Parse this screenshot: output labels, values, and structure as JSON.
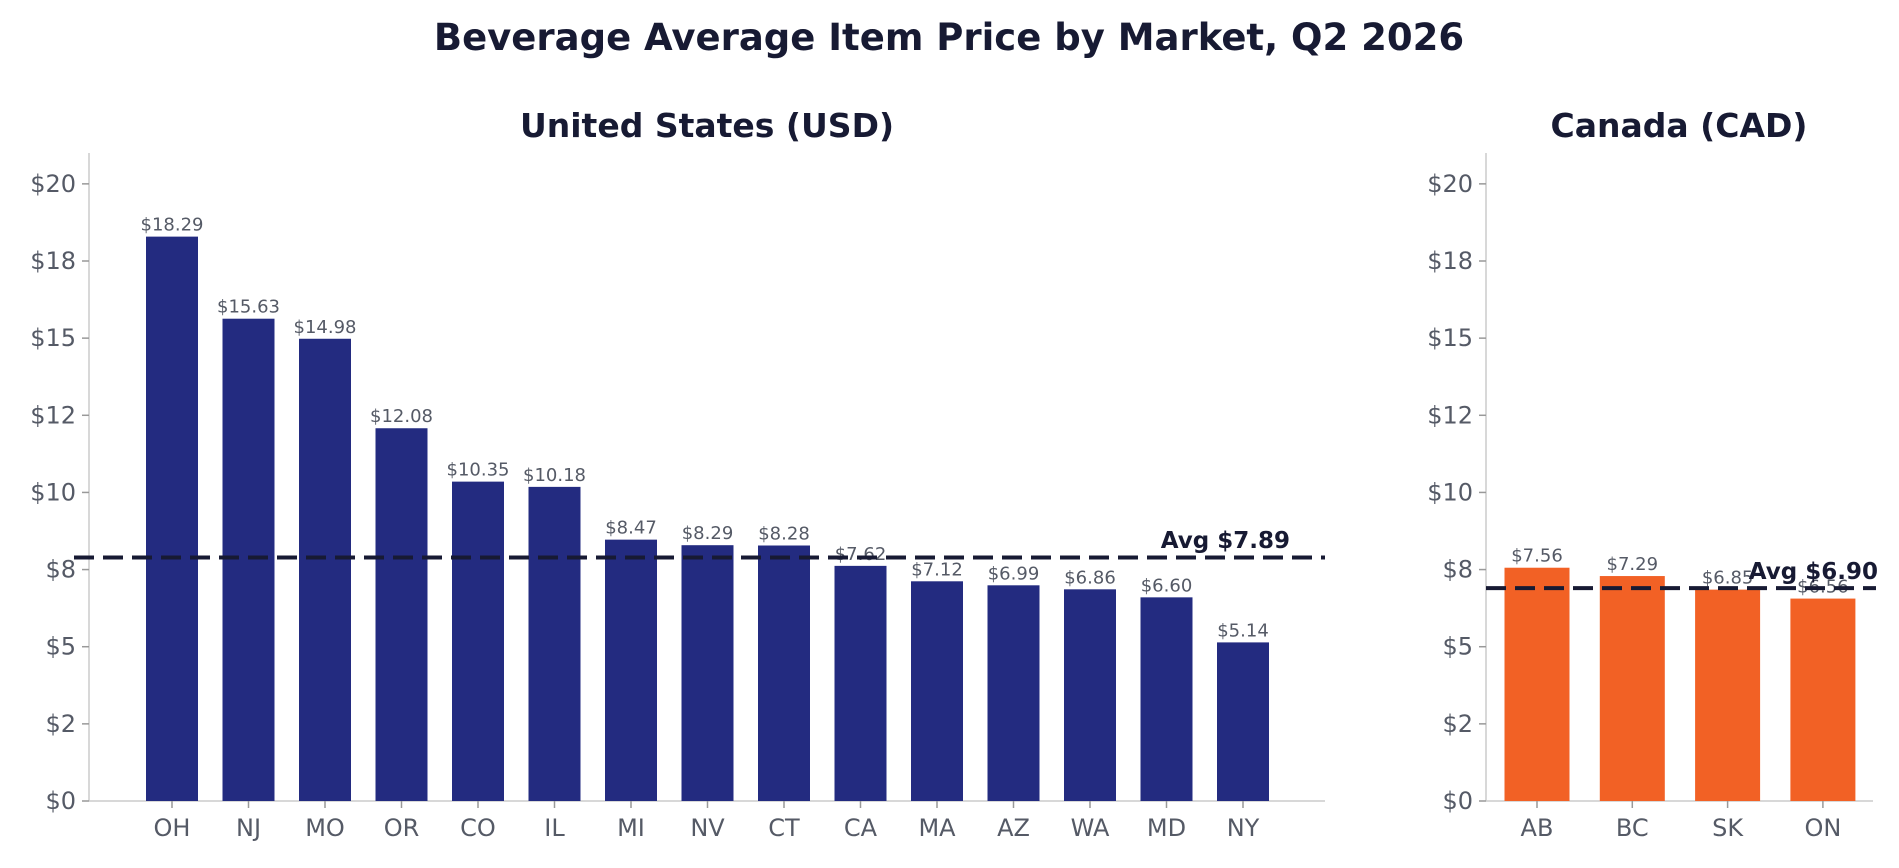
{
  "title": "Beverage Average Item Price by Market, Q2 2026",
  "chart_data": [
    {
      "type": "bar",
      "title": "United States (USD)",
      "xlabel": "",
      "ylabel": "",
      "ylim": [
        0,
        21
      ],
      "ytick_values": [
        0,
        2.5,
        5,
        7.5,
        10,
        12.5,
        15,
        17.5,
        20
      ],
      "ytick_labels": [
        "$0",
        "$2",
        "$5",
        "$8",
        "$10",
        "$12",
        "$15",
        "$18",
        "$20"
      ],
      "categories": [
        "OH",
        "NJ",
        "MO",
        "OR",
        "CO",
        "IL",
        "MI",
        "NV",
        "CT",
        "CA",
        "MA",
        "AZ",
        "WA",
        "MD",
        "NY"
      ],
      "values": [
        18.29,
        15.63,
        14.98,
        12.08,
        10.35,
        10.18,
        8.47,
        8.29,
        8.28,
        7.62,
        7.12,
        6.99,
        6.86,
        6.6,
        5.14
      ],
      "value_labels": [
        "$18.29",
        "$15.63",
        "$14.98",
        "$12.08",
        "$10.35",
        "$10.18",
        "$8.47",
        "$8.29",
        "$8.28",
        "$7.62",
        "$7.12",
        "$6.99",
        "$6.86",
        "$6.60",
        "$5.14"
      ],
      "bar_color": "#232b80",
      "average": 7.89,
      "average_label": "Avg $7.89",
      "grid": false
    },
    {
      "type": "bar",
      "title": "Canada (CAD)",
      "xlabel": "",
      "ylabel": "",
      "ylim": [
        0,
        21
      ],
      "ytick_values": [
        0,
        2.5,
        5,
        7.5,
        10,
        12.5,
        15,
        17.5,
        20
      ],
      "ytick_labels": [
        "$0",
        "$2",
        "$5",
        "$8",
        "$10",
        "$12",
        "$15",
        "$18",
        "$20"
      ],
      "categories": [
        "AB",
        "BC",
        "SK",
        "ON"
      ],
      "values": [
        7.56,
        7.29,
        6.85,
        6.56
      ],
      "value_labels": [
        "$7.56",
        "$7.29",
        "$6.85",
        "$6.56"
      ],
      "bar_color": "#f26125",
      "average": 6.9,
      "average_label": "Avg $6.90",
      "grid": false
    }
  ]
}
